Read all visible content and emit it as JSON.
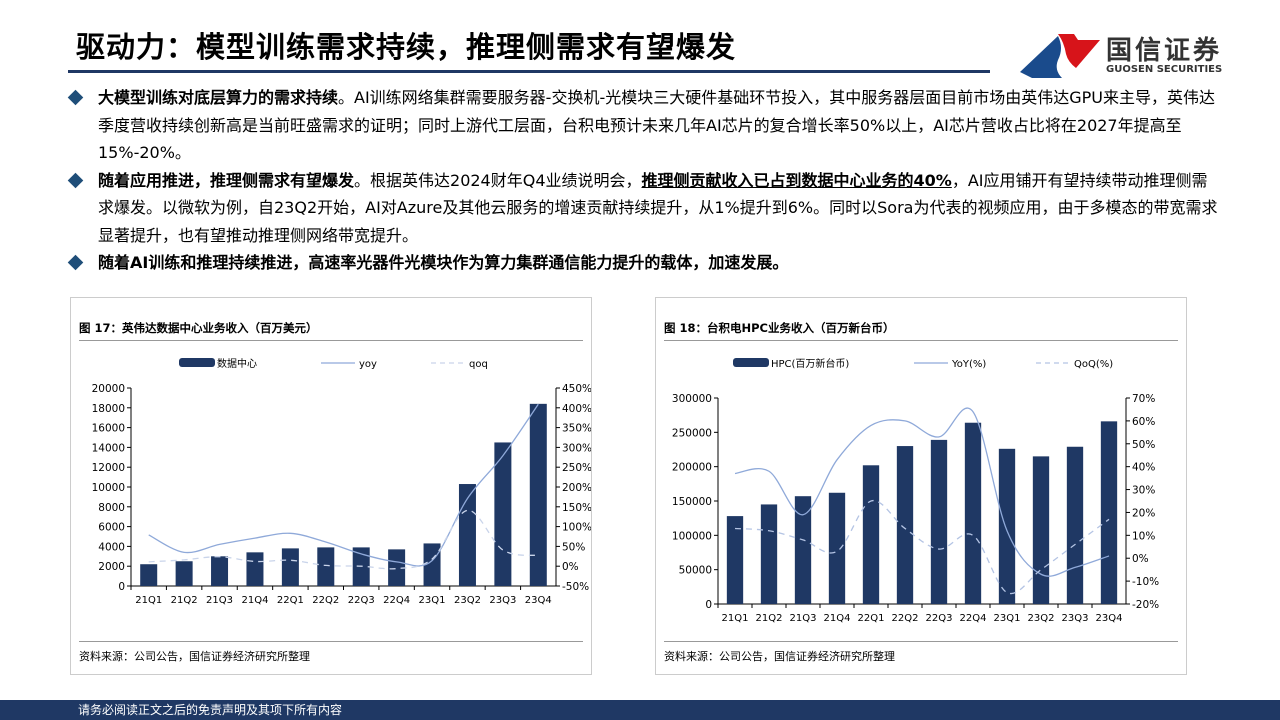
{
  "header": {
    "title": "驱动力：模型训练需求持续，推理侧需求有望爆发"
  },
  "logo": {
    "cn": "国信证券",
    "en": "GUOSEN SECURITIES",
    "colors": {
      "red": "#d7141a",
      "blue": "#1a4b8c"
    }
  },
  "bullets": [
    [
      {
        "t": "大模型训练对底层算力的需求持续",
        "b": true
      },
      {
        "t": "。AI训练网络集群需要服务器-交换机-光模块三大硬件基础环节投入，其中服务器层面目前市场由英伟达GPU来主导，英伟达季度营收持续创新高是当前旺盛需求的证明；同时上游代工层面，台积电预计未来几年AI芯片的复合增长率50%以上，AI芯片营收占比将在2027年提高至15%-20%。"
      }
    ],
    [
      {
        "t": "随着应用推进，推理侧需求有望爆发",
        "b": true
      },
      {
        "t": "。根据英伟达2024财年Q4业绩说明会，"
      },
      {
        "t": "推理侧贡献收入已占到数据中心业务的40%",
        "b": true,
        "u": true
      },
      {
        "t": "，AI应用铺开有望持续带动推理侧需求爆发。以微软为例，自23Q2开始，AI对Azure及其他云服务的增速贡献持续提升，从1%提升到6%。同时以Sora为代表的视频应用，由于多模态的带宽需求显著提升，也有望推动推理侧网络带宽提升。"
      }
    ],
    [
      {
        "t": "随着AI训练和推理持续推进，高速率光器件光模块作为算力集群通信能力提升的载体，加速发展。",
        "b": true
      }
    ]
  ],
  "footer": {
    "text": "请务必阅读正文之后的免责声明及其项下所有内容"
  },
  "chart_data": [
    {
      "type": "bar",
      "title": "图 17：英伟达数据中心业务收入（百万美元）",
      "source": "资料来源：公司公告，国信证券经济研究所整理",
      "categories": [
        "21Q1",
        "21Q2",
        "21Q3",
        "21Q4",
        "22Q1",
        "22Q2",
        "22Q3",
        "22Q4",
        "23Q1",
        "23Q2",
        "23Q3",
        "23Q4"
      ],
      "bar_series": {
        "name": "数据中心",
        "values": [
          2200,
          2500,
          3000,
          3400,
          3800,
          3900,
          3900,
          3700,
          4300,
          10300,
          14500,
          18400
        ],
        "color": "#1f3864"
      },
      "line_series": [
        {
          "name": "yoy",
          "values": [
            79,
            35,
            55,
            71,
            83,
            61,
            31,
            11,
            14,
            171,
            279,
            409
          ],
          "color": "#8fa9d9",
          "dash": false
        },
        {
          "name": "qoq",
          "values": [
            11,
            16,
            24,
            12,
            15,
            2,
            0,
            -6,
            18,
            141,
            41,
            27
          ],
          "color": "#c9d4ea",
          "dash": true
        }
      ],
      "ylim": [
        0,
        20000
      ],
      "yticks": [
        0,
        2000,
        4000,
        6000,
        8000,
        10000,
        12000,
        14000,
        16000,
        18000,
        20000
      ],
      "y2lim": [
        -50,
        450
      ],
      "y2ticks": [
        "-50%",
        "0%",
        "50%",
        "100%",
        "150%",
        "200%",
        "250%",
        "300%",
        "350%",
        "400%",
        "450%"
      ],
      "grid": false,
      "legend": "top"
    },
    {
      "type": "bar",
      "title": "图 18：台积电HPC业务收入（百万新台币）",
      "source": "资料来源：公司公告，国信证券经济研究所整理",
      "categories": [
        "21Q1",
        "21Q2",
        "21Q3",
        "21Q4",
        "22Q1",
        "22Q2",
        "22Q3",
        "22Q4",
        "23Q1",
        "23Q2",
        "23Q3",
        "23Q4"
      ],
      "bar_series": {
        "name": "HPC(百万新台币)",
        "values": [
          128000,
          145000,
          157000,
          162000,
          202000,
          230000,
          239000,
          264000,
          226000,
          215000,
          229000,
          266000
        ],
        "color": "#1f3864"
      },
      "line_series": [
        {
          "name": "YoY(%)",
          "values": [
            37,
            38,
            19,
            43,
            58,
            60,
            53,
            64,
            12,
            -7,
            -4,
            1
          ],
          "color": "#8fa9d9",
          "dash": false
        },
        {
          "name": "QoQ(%)",
          "values": [
            13,
            12,
            8,
            3,
            25,
            13,
            4,
            10,
            -15,
            -5,
            6,
            17
          ],
          "color": "#b4c4e4",
          "dash": true
        }
      ],
      "ylim": [
        0,
        300000
      ],
      "yticks": [
        0,
        50000,
        100000,
        150000,
        200000,
        250000,
        300000
      ],
      "y2lim": [
        -20,
        70
      ],
      "y2ticks": [
        "-20%",
        "-10%",
        "0%",
        "10%",
        "20%",
        "30%",
        "40%",
        "50%",
        "60%",
        "70%"
      ],
      "grid": false,
      "legend": "top"
    }
  ]
}
